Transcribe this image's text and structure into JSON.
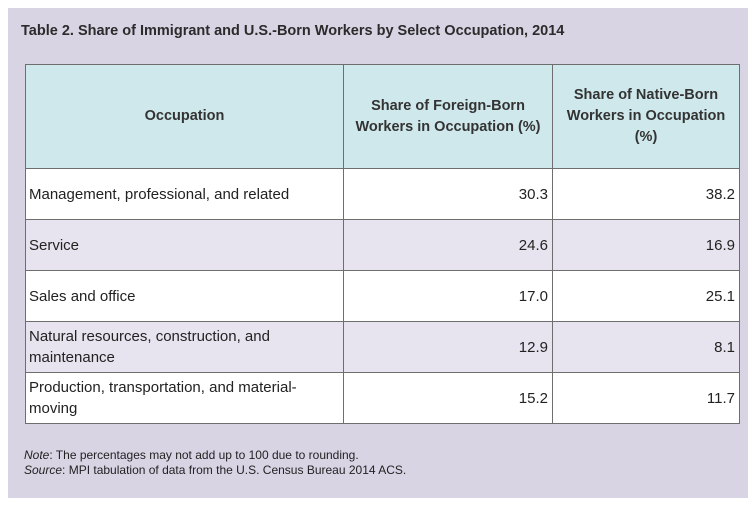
{
  "table": {
    "title": "Table 2. Share of Immigrant and U.S.-Born Workers by Select Occupation, 2014",
    "headers": [
      "Occupation",
      "Share of Foreign-Born Workers in Occupation (%)",
      "Share of Native-Born Workers in Occupation (%)"
    ],
    "rows": [
      {
        "occupation": "Management, professional, and related",
        "foreign_born": "30.3",
        "native_born": "38.2"
      },
      {
        "occupation": "Service",
        "foreign_born": "24.6",
        "native_born": "16.9"
      },
      {
        "occupation": "Sales and office",
        "foreign_born": "17.0",
        "native_born": "25.1"
      },
      {
        "occupation": "Natural resources, construction, and maintenance",
        "foreign_born": "12.9",
        "native_born": "8.1"
      },
      {
        "occupation": "Production, transportation, and material-moving",
        "foreign_born": "15.2",
        "native_born": "11.7"
      }
    ]
  },
  "notes": {
    "note_label": "Note",
    "note_text": ": The percentages may not add up to 100 due to rounding.",
    "source_label": "Source",
    "source_text": ": MPI tabulation of data from the U.S. Census Bureau 2014 ACS."
  }
}
